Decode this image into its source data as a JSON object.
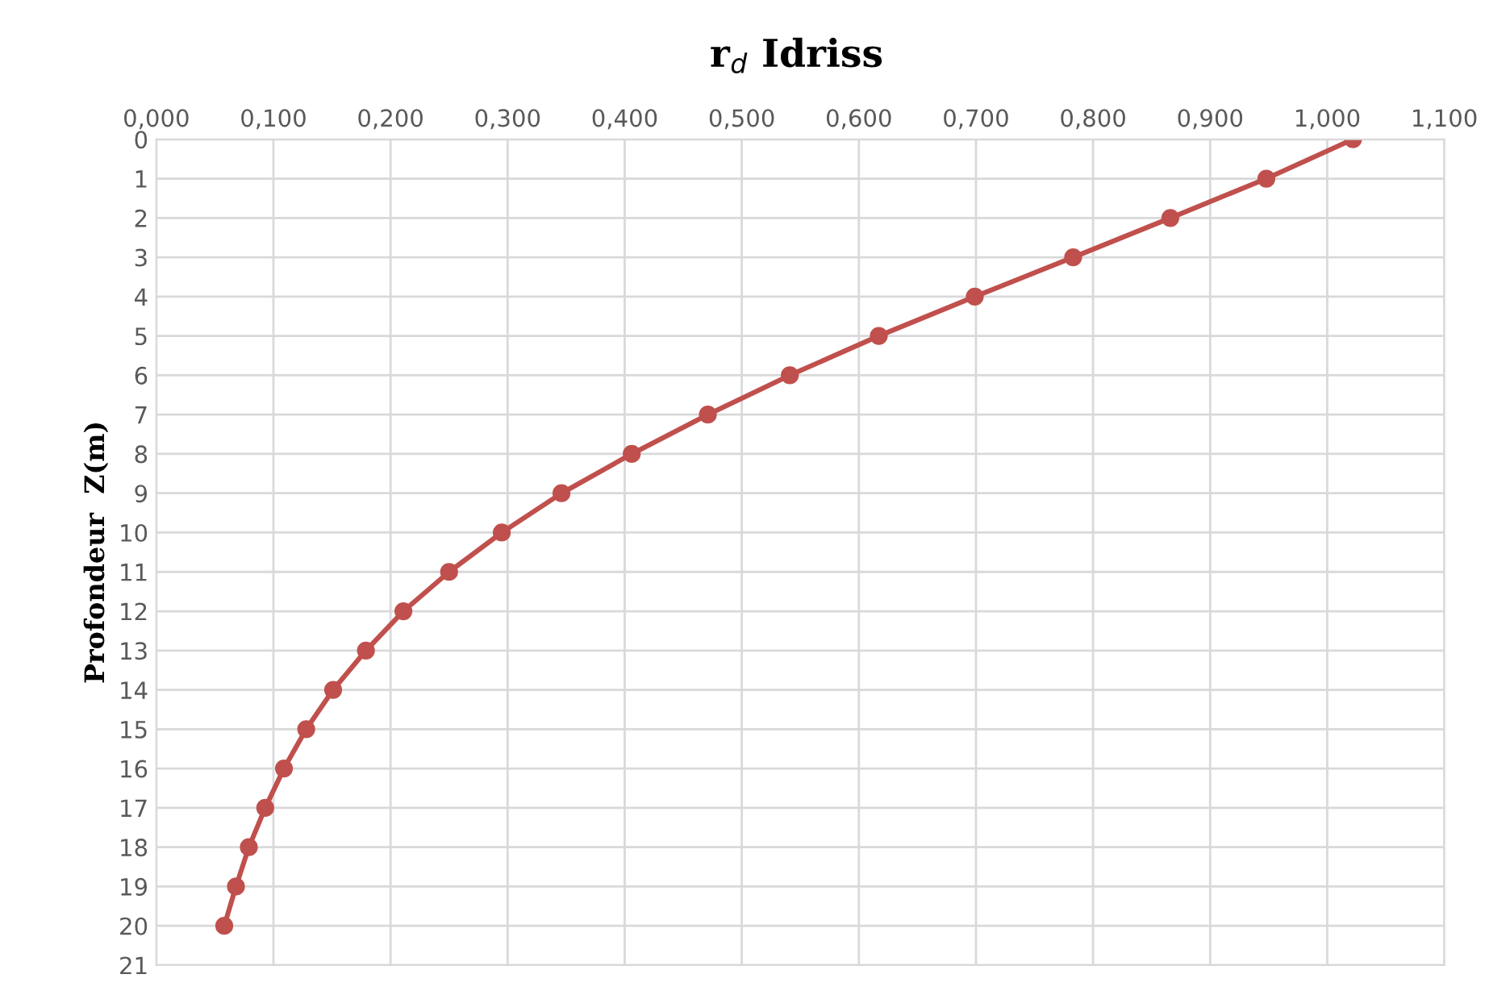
{
  "chart_data": {
    "type": "line",
    "title": "r$_{d}$ Idriss",
    "ylabel": "Profondeur  Z(m)",
    "series": [
      {
        "color": "#c0504d",
        "x": [
          1.022,
          0.948,
          0.866,
          0.783,
          0.699,
          0.617,
          0.541,
          0.471,
          0.406,
          0.346,
          0.295,
          0.25,
          0.211,
          0.179,
          0.151,
          0.128,
          0.109,
          0.093,
          0.079,
          0.068,
          0.058
        ],
        "values": [
          0,
          1,
          2,
          3,
          4,
          5,
          6,
          7,
          8,
          9,
          10,
          11,
          12,
          13,
          14,
          15,
          16,
          17,
          18,
          19,
          20
        ]
      }
    ],
    "xlim": [
      0,
      1.1
    ],
    "xticks": [
      {
        "value": 0,
        "label": "0,000"
      },
      {
        "value": 0.1,
        "label": "0,100"
      },
      {
        "value": 0.2,
        "label": "0,200"
      },
      {
        "value": 0.3,
        "label": "0,300"
      },
      {
        "value": 0.4,
        "label": "0,400"
      },
      {
        "value": 0.5,
        "label": "0,500"
      },
      {
        "value": 0.6,
        "label": "0,600"
      },
      {
        "value": 0.7,
        "label": "0,700"
      },
      {
        "value": 0.8,
        "label": "0,800"
      },
      {
        "value": 0.9,
        "label": "0,900"
      },
      {
        "value": 1.0,
        "label": "1,000"
      },
      {
        "value": 1.1,
        "label": "1,100"
      }
    ],
    "ylim": [
      21,
      0
    ],
    "yticks": [
      0,
      1,
      2,
      3,
      4,
      5,
      6,
      7,
      8,
      9,
      10,
      11,
      12,
      13,
      14,
      15,
      16,
      17,
      18,
      19,
      20,
      21
    ],
    "grid": true,
    "marker": "circle",
    "line_style": "solid"
  }
}
